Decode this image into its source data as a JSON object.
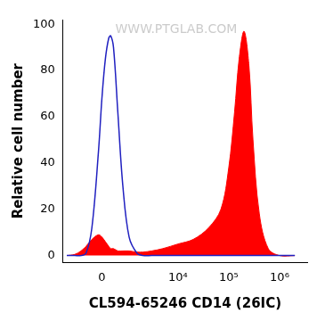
{
  "chart_data": {
    "type": "line",
    "x_label": "CL594-65246 CD14 (26IC)",
    "y_label": "Relative cell number",
    "annotations": [
      "WWW.PTGLAB.COM"
    ],
    "x": [
      -1500,
      -1000,
      -700,
      -500,
      -300,
      -100,
      0,
      100,
      200,
      260,
      350,
      500,
      700,
      1000,
      1500,
      2000,
      3000,
      5000,
      10000,
      20000,
      40000,
      70000,
      100000,
      130000,
      160000,
      200000,
      250000,
      300000,
      400000,
      600000,
      1000000,
      2000000
    ],
    "series": [
      {
        "type": "area",
        "color": "#ff0000",
        "values": [
          0,
          0.5,
          2,
          4,
          7,
          9,
          8,
          6,
          4,
          3,
          3,
          2,
          2,
          2,
          1.5,
          1.5,
          2,
          3,
          5,
          7,
          12,
          20,
          38,
          62,
          85,
          97,
          82,
          50,
          18,
          3,
          0,
          0
        ]
      },
      {
        "type": "line",
        "color": "#2020c0",
        "values": [
          0,
          0,
          0,
          1,
          12,
          45,
          68,
          85,
          94,
          95,
          90,
          62,
          30,
          8,
          1,
          0,
          0,
          0,
          0,
          0,
          0,
          0,
          0,
          0,
          0,
          0,
          0,
          0,
          0,
          0,
          0,
          0
        ]
      }
    ],
    "xlim": [
      -1800,
      3500000
    ],
    "xticks": [
      0,
      {
        "value": 10000,
        "label": "10⁴"
      },
      {
        "value": 100000,
        "label": "10⁵"
      },
      {
        "value": 1000000,
        "label": "10⁶"
      }
    ],
    "ylim": [
      -3,
      102
    ],
    "yticks": [
      0,
      20,
      40,
      60,
      80,
      100
    ],
    "grid": false
  }
}
